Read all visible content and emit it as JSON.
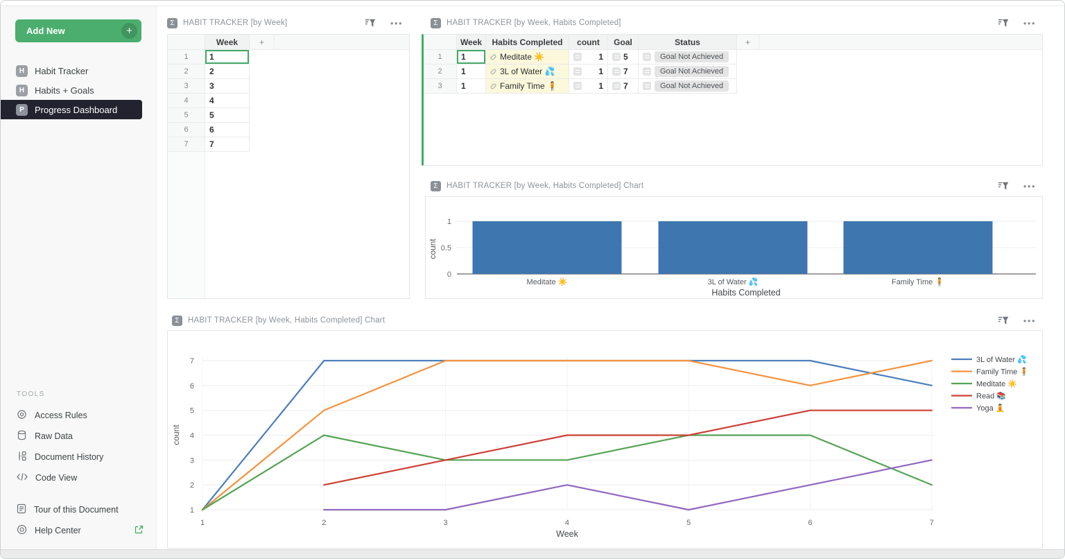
{
  "colors": {
    "accent_green": "#4bae6e",
    "selected_nav_bg": "#22232f",
    "bar_blue": "#3e76af",
    "habit_cell_yellow": "#fcf8dc"
  },
  "sidebar": {
    "add_new_label": "Add New",
    "pages": [
      {
        "label": "Habit Tracker",
        "icon_letter": "H",
        "selected": false
      },
      {
        "label": "Habits + Goals",
        "icon_letter": "H",
        "selected": false
      },
      {
        "label": "Progress Dashboard",
        "icon_letter": "P",
        "selected": true
      }
    ],
    "tools_heading": "TOOLS",
    "tools": [
      {
        "label": "Access Rules",
        "icon": "access-rules-icon"
      },
      {
        "label": "Raw Data",
        "icon": "database-icon"
      },
      {
        "label": "Document History",
        "icon": "history-icon"
      },
      {
        "label": "Code View",
        "icon": "code-icon"
      }
    ],
    "footer_tools": [
      {
        "label": "Tour of this Document",
        "icon": "document-icon",
        "external": false
      },
      {
        "label": "Help Center",
        "icon": "help-icon",
        "external": true
      }
    ]
  },
  "sections": {
    "table1": {
      "title": "HABIT TRACKER [by Week]",
      "column": "Week",
      "add_column": "+",
      "rows": [
        {
          "n": "1",
          "week": "1"
        },
        {
          "n": "2",
          "week": "2"
        },
        {
          "n": "3",
          "week": "3"
        },
        {
          "n": "4",
          "week": "4"
        },
        {
          "n": "5",
          "week": "5"
        },
        {
          "n": "6",
          "week": "6"
        },
        {
          "n": "7",
          "week": "7"
        }
      ]
    },
    "table2": {
      "title": "HABIT TRACKER [by Week, Habits Completed]",
      "columns": [
        "Week",
        "Habits Completed",
        "count",
        "Goal",
        "Status"
      ],
      "add_column": "+",
      "rows": [
        {
          "n": "1",
          "week": "1",
          "habit": "Meditate ☀️",
          "count": "1",
          "goal": "5",
          "status": "Goal Not Achieved"
        },
        {
          "n": "2",
          "week": "1",
          "habit": "3L of Water 💦",
          "count": "1",
          "goal": "7",
          "status": "Goal Not Achieved"
        },
        {
          "n": "3",
          "week": "1",
          "habit": "Family Time 🧍",
          "count": "1",
          "goal": "7",
          "status": "Goal Not Achieved"
        }
      ]
    },
    "chart1": {
      "title": "HABIT TRACKER [by Week, Habits Completed] Chart"
    },
    "chart2": {
      "title": "HABIT TRACKER [by Week, Habits Completed] Chart"
    }
  },
  "chart_data": [
    {
      "type": "bar",
      "title": "HABIT TRACKER [by Week, Habits Completed] Chart",
      "categories": [
        "Meditate ☀️",
        "3L of Water 💦",
        "Family Time 🧍"
      ],
      "values": [
        1,
        1,
        1
      ],
      "xlabel": "Habits Completed",
      "ylabel": "count",
      "yticks": [
        0,
        0.5,
        1
      ],
      "ylim": [
        0,
        1.3
      ],
      "bar_color": "#3e76af",
      "grid": true,
      "legend": false
    },
    {
      "type": "line",
      "title": "HABIT TRACKER [by Week, Habits Completed] Chart",
      "xlabel": "Week",
      "ylabel": "count",
      "x_ticks": [
        1,
        2,
        3,
        4,
        5,
        6,
        7
      ],
      "y_ticks": [
        1,
        2,
        3,
        4,
        5,
        6,
        7
      ],
      "xlim": [
        1,
        7
      ],
      "ylim": [
        1,
        7
      ],
      "grid": true,
      "legend_position": "right",
      "series": [
        {
          "name": "3L of Water 💦",
          "color": "#4c7ebb",
          "points": [
            [
              1,
              1
            ],
            [
              2,
              7
            ],
            [
              3,
              7
            ],
            [
              4,
              7
            ],
            [
              5,
              7
            ],
            [
              6,
              7
            ],
            [
              7,
              6
            ]
          ]
        },
        {
          "name": "Family Time 🧍",
          "color": "#f5923e",
          "points": [
            [
              1,
              1
            ],
            [
              2,
              5
            ],
            [
              3,
              7
            ],
            [
              4,
              7
            ],
            [
              5,
              7
            ],
            [
              6,
              6
            ],
            [
              7,
              7
            ]
          ]
        },
        {
          "name": "Meditate ☀️",
          "color": "#56a355",
          "points": [
            [
              1,
              1
            ],
            [
              2,
              4
            ],
            [
              3,
              3
            ],
            [
              4,
              3
            ],
            [
              5,
              4
            ],
            [
              6,
              4
            ],
            [
              7,
              2
            ]
          ]
        },
        {
          "name": "Read 📚",
          "color": "#cc4037",
          "points": [
            [
              2,
              2
            ],
            [
              3,
              3
            ],
            [
              4,
              4
            ],
            [
              5,
              4
            ],
            [
              6,
              5
            ],
            [
              7,
              5
            ]
          ]
        },
        {
          "name": "Yoga 🧘",
          "color": "#9068be",
          "points": [
            [
              2,
              1
            ],
            [
              3,
              1
            ],
            [
              4,
              2
            ],
            [
              5,
              1
            ],
            [
              6,
              2
            ],
            [
              7,
              3
            ]
          ]
        }
      ]
    }
  ]
}
